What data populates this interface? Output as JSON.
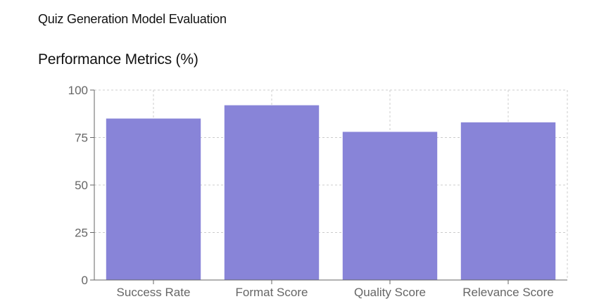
{
  "page": {
    "title": "Quiz Generation Model Evaluation"
  },
  "chart_data": {
    "type": "bar",
    "title": "Performance Metrics (%)",
    "categories": [
      "Success Rate",
      "Format Score",
      "Quality Score",
      "Relevance Score"
    ],
    "series": [
      {
        "values": [
          85,
          92,
          78,
          83
        ]
      }
    ],
    "ylim": [
      0,
      100
    ],
    "yticks": [
      0,
      25,
      50,
      75,
      100
    ],
    "grid": true,
    "legend": "none",
    "colors": {
      "bar": "#8884d8",
      "grid": "#cccccc",
      "axis": "#666666"
    }
  }
}
